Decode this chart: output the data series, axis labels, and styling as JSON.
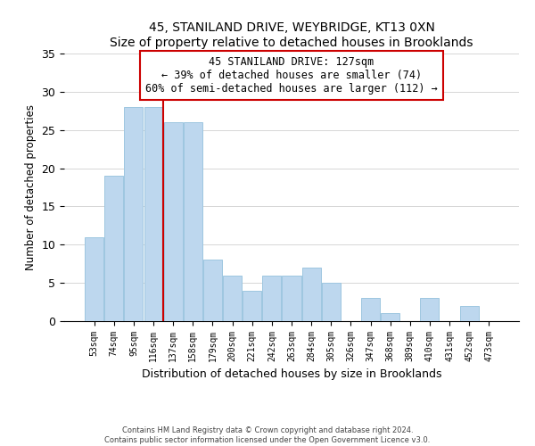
{
  "title": "45, STANILAND DRIVE, WEYBRIDGE, KT13 0XN",
  "subtitle": "Size of property relative to detached houses in Brooklands",
  "xlabel": "Distribution of detached houses by size in Brooklands",
  "ylabel": "Number of detached properties",
  "bar_labels": [
    "53sqm",
    "74sqm",
    "95sqm",
    "116sqm",
    "137sqm",
    "158sqm",
    "179sqm",
    "200sqm",
    "221sqm",
    "242sqm",
    "263sqm",
    "284sqm",
    "305sqm",
    "326sqm",
    "347sqm",
    "368sqm",
    "389sqm",
    "410sqm",
    "431sqm",
    "452sqm",
    "473sqm"
  ],
  "bar_values": [
    11,
    19,
    28,
    28,
    26,
    26,
    8,
    6,
    4,
    6,
    6,
    7,
    5,
    0,
    3,
    1,
    0,
    3,
    0,
    2,
    0
  ],
  "bar_color": "#bdd7ee",
  "bar_edge_color": "#9ec6e0",
  "vline_x": 3.5,
  "vline_color": "#cc0000",
  "annotation_title": "45 STANILAND DRIVE: 127sqm",
  "annotation_line1": "← 39% of detached houses are smaller (74)",
  "annotation_line2": "60% of semi-detached houses are larger (112) →",
  "annotation_box_color": "#ffffff",
  "annotation_box_edge": "#cc0000",
  "ylim": [
    0,
    35
  ],
  "yticks": [
    0,
    5,
    10,
    15,
    20,
    25,
    30,
    35
  ],
  "footnote1": "Contains HM Land Registry data © Crown copyright and database right 2024.",
  "footnote2": "Contains public sector information licensed under the Open Government Licence v3.0."
}
